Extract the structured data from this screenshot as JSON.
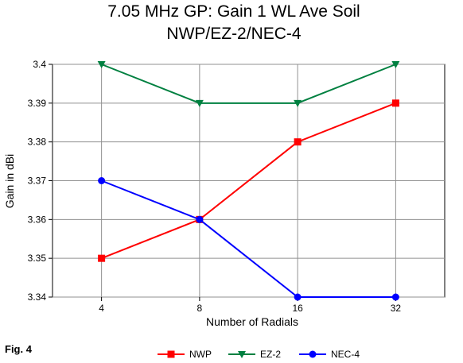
{
  "figure_label": "Fig. 4",
  "chart_data": {
    "type": "line",
    "title": "7.05 MHz GP:  Gain 1 WL Ave Soil",
    "subtitle": "NWP/EZ-2/NEC-4",
    "xlabel": "Number of Radials",
    "ylabel": "Gain in dBi",
    "categories": [
      "4",
      "8",
      "16",
      "32"
    ],
    "ylim": [
      3.34,
      3.4
    ],
    "yticks": [
      "3.34",
      "3.35",
      "3.36",
      "3.37",
      "3.38",
      "3.39",
      "3.4"
    ],
    "grid": true,
    "legend_position": "bottom",
    "series": [
      {
        "name": "NWP",
        "color": "#ff0000",
        "marker": "square",
        "values": [
          3.35,
          3.36,
          3.38,
          3.39
        ]
      },
      {
        "name": "EZ-2",
        "color": "#008040",
        "marker": "triangle-down",
        "values": [
          3.4,
          3.39,
          3.39,
          3.4
        ]
      },
      {
        "name": "NEC-4",
        "color": "#0000ff",
        "marker": "circle",
        "values": [
          3.37,
          3.36,
          3.34,
          3.34
        ]
      }
    ]
  }
}
